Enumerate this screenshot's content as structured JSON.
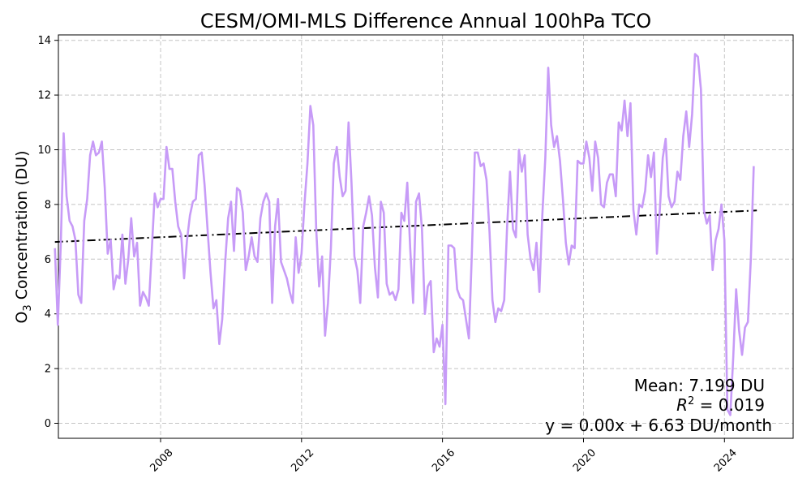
{
  "chart_data": {
    "type": "line",
    "title": "CESM/OMI-MLS Difference Annual 100hPa TCO",
    "ylabel_base": "O",
    "ylabel_sub": "3",
    "ylabel_rest": " Concentration (DU)",
    "xlim": [
      2005.1,
      2025.95
    ],
    "ylim": [
      -0.55,
      14.2
    ],
    "grid": true,
    "x_ticks": [
      2008,
      2012,
      2016,
      2020,
      2024
    ],
    "x_tick_labels": [
      "2008",
      "2012",
      "2016",
      "2020",
      "2024"
    ],
    "y_ticks": [
      0,
      2,
      4,
      6,
      8,
      10,
      12,
      14
    ],
    "y_tick_labels": [
      "0",
      "2",
      "4",
      "6",
      "8",
      "10",
      "12",
      "14"
    ],
    "series": [
      {
        "color": "#c79bf7",
        "x_start": 2005.0,
        "x_step": 0.08333,
        "y": [
          6.4,
          3.6,
          6.5,
          10.6,
          8.3,
          7.4,
          7.2,
          6.7,
          4.7,
          4.4,
          7.4,
          8.2,
          9.8,
          10.3,
          9.8,
          9.9,
          10.3,
          8.6,
          6.2,
          6.7,
          4.9,
          5.4,
          5.3,
          6.9,
          5.1,
          6.0,
          7.5,
          6.1,
          6.6,
          4.3,
          4.8,
          4.6,
          4.3,
          6.3,
          8.4,
          7.9,
          8.2,
          8.2,
          10.1,
          9.3,
          9.3,
          8.1,
          7.2,
          6.9,
          5.3,
          6.7,
          7.6,
          8.1,
          8.2,
          9.8,
          9.9,
          8.7,
          7.1,
          5.5,
          4.2,
          4.5,
          2.9,
          3.8,
          5.9,
          7.5,
          8.1,
          6.3,
          8.6,
          8.5,
          7.7,
          5.6,
          6.1,
          6.8,
          6.1,
          5.9,
          7.5,
          8.1,
          8.4,
          8.1,
          4.4,
          7.2,
          8.2,
          5.9,
          5.6,
          5.3,
          4.8,
          4.4,
          6.8,
          5.5,
          6.2,
          8.0,
          9.5,
          11.6,
          10.9,
          7.1,
          5.0,
          6.1,
          3.2,
          4.4,
          6.4,
          9.5,
          10.1,
          9.0,
          8.3,
          8.5,
          11.0,
          8.8,
          6.1,
          5.6,
          4.4,
          7.2,
          7.7,
          8.3,
          7.6,
          5.7,
          4.6,
          8.1,
          7.7,
          5.1,
          4.7,
          4.8,
          4.5,
          4.9,
          7.7,
          7.4,
          8.8,
          6.4,
          4.4,
          8.1,
          8.4,
          7.1,
          4.0,
          5.0,
          5.2,
          2.6,
          3.1,
          2.8,
          3.6,
          0.7,
          6.5,
          6.5,
          6.4,
          4.9,
          4.6,
          4.5,
          3.8,
          3.1,
          6.2,
          9.9,
          9.9,
          9.4,
          9.5,
          8.9,
          7.0,
          4.5,
          3.7,
          4.2,
          4.1,
          4.5,
          7.2,
          9.2,
          7.1,
          6.8,
          10.0,
          9.2,
          9.8,
          6.9,
          6.0,
          5.6,
          6.6,
          4.8,
          7.6,
          9.7,
          13.0,
          10.9,
          10.1,
          10.5,
          9.6,
          8.2,
          6.6,
          5.8,
          6.5,
          6.4,
          9.6,
          9.5,
          9.5,
          10.3,
          9.7,
          8.5,
          10.3,
          9.7,
          8.0,
          7.9,
          8.8,
          9.1,
          9.1,
          8.3,
          11.0,
          10.7,
          11.8,
          10.5,
          11.7,
          7.8,
          6.9,
          8.0,
          7.9,
          8.5,
          9.8,
          9.0,
          9.9,
          6.2,
          7.8,
          9.7,
          10.4,
          8.3,
          7.9,
          8.1,
          9.2,
          8.9,
          10.5,
          11.4,
          10.1,
          11.3,
          13.5,
          13.4,
          12.2,
          7.8,
          7.3,
          7.6,
          5.6,
          6.7,
          7.1,
          8.0,
          6.7,
          0.5,
          0.3,
          2.4,
          4.9,
          3.4,
          2.5,
          3.5,
          3.7,
          6.0,
          9.4
        ]
      }
    ],
    "trend": {
      "color": "#000000",
      "x": [
        2005.0,
        2024.92
      ],
      "y": [
        6.63,
        7.78
      ]
    },
    "annotations": {
      "mean": "Mean: 7.199 DU",
      "r2_prefix": "R",
      "r2_sup": "2",
      "r2_suffix": " = 0.019",
      "equation": "y = 0.00x + 6.63 DU/month"
    }
  }
}
